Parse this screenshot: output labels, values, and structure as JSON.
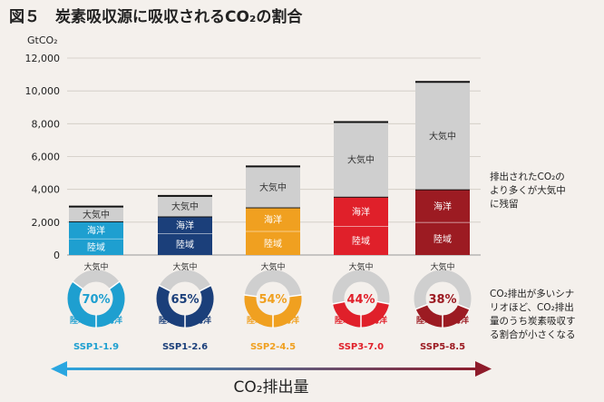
{
  "title": "図５　炭素吸収源に吸収されるCO₂の割合",
  "colors": {
    "atmosphere": "#cfcfcf",
    "ssp": [
      "#1e9fd0",
      "#1b3f7a",
      "#f0a020",
      "#e0202a",
      "#9c1b22"
    ],
    "ssp_light": [
      "#4fb8dd",
      "#2f5590",
      "#f4b440",
      "#e8454a",
      "#b02c33"
    ],
    "arrow_left": "#2aa6e0",
    "arrow_right": "#8e1b2a"
  },
  "chart_data": {
    "type": "bar",
    "ylabel": "GtCO₂",
    "ylim": [
      0,
      12000
    ],
    "yticks": [
      "0",
      "2,000",
      "4,000",
      "6,000",
      "8,000",
      "10,000",
      "12,000"
    ],
    "categories": [
      "SSP1-1.9",
      "SSP1-2.6",
      "SSP2-4.5",
      "SSP3-7.0",
      "SSP5-8.5"
    ],
    "segment_labels": {
      "land": "陸域",
      "ocean": "海洋",
      "atmosphere": "大気中"
    },
    "series": [
      {
        "name": "陸域",
        "values": [
          1000,
          1300,
          1450,
          1750,
          2000
        ]
      },
      {
        "name": "海洋",
        "values": [
          1050,
          1050,
          1450,
          1800,
          2000
        ]
      },
      {
        "name": "大気中",
        "values": [
          900,
          1250,
          2500,
          4550,
          6550
        ]
      }
    ],
    "totals": [
      2950,
      3600,
      5400,
      8100,
      10550
    ],
    "absorbed_pct": [
      "70%",
      "65%",
      "54%",
      "44%",
      "38%"
    ],
    "absorbed_fraction": [
      0.7,
      0.65,
      0.54,
      0.44,
      0.38
    ],
    "ring_labels": {
      "top": "大気中",
      "left": "陸域",
      "right": "海洋"
    }
  },
  "annotation_right": [
    "排出されたCO₂の",
    "より多くが大気中",
    "に残留"
  ],
  "annotation_bottom": [
    "CO₂排出が多いシナ",
    "リオほど、CO₂排出",
    "量のうち炭素吸収す",
    "る割合が小さくなる"
  ],
  "xaxis_label": "CO₂排出量"
}
